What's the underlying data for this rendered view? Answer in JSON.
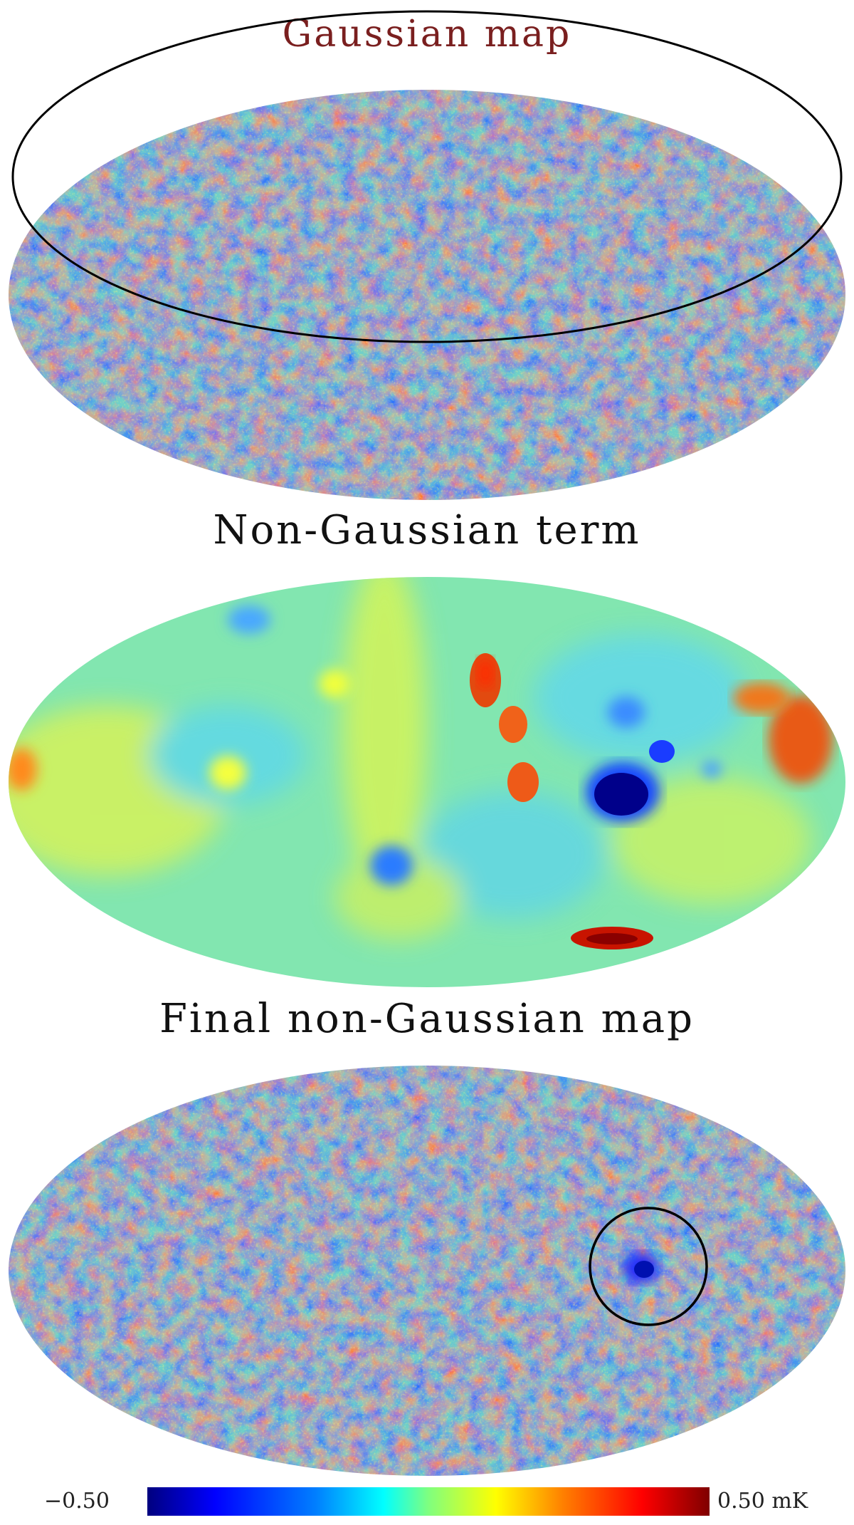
{
  "panels": [
    {
      "id": "gaussian",
      "title": "Gaussian map",
      "title_color": "#7a1f1f"
    },
    {
      "id": "nongaussian-term",
      "title": "Non-Gaussian term",
      "title_color": "#111111"
    },
    {
      "id": "final",
      "title": "Final non-Gaussian map",
      "title_color": "#111111"
    }
  ],
  "colorbar": {
    "min_label": "−0.50",
    "max_label": "0.50 mK",
    "min_value": -0.5,
    "max_value": 0.5,
    "unit": "mK",
    "colormap": [
      "#00007f",
      "#0000ff",
      "#007fff",
      "#00ffff",
      "#7fff7f",
      "#ffff00",
      "#ff7f00",
      "#ff0000",
      "#7f0000"
    ]
  },
  "colors": {
    "map_base_gaussian": "#6fd0c8",
    "map_base_term": "#7fe3b8",
    "annotation_stroke": "#000000"
  }
}
